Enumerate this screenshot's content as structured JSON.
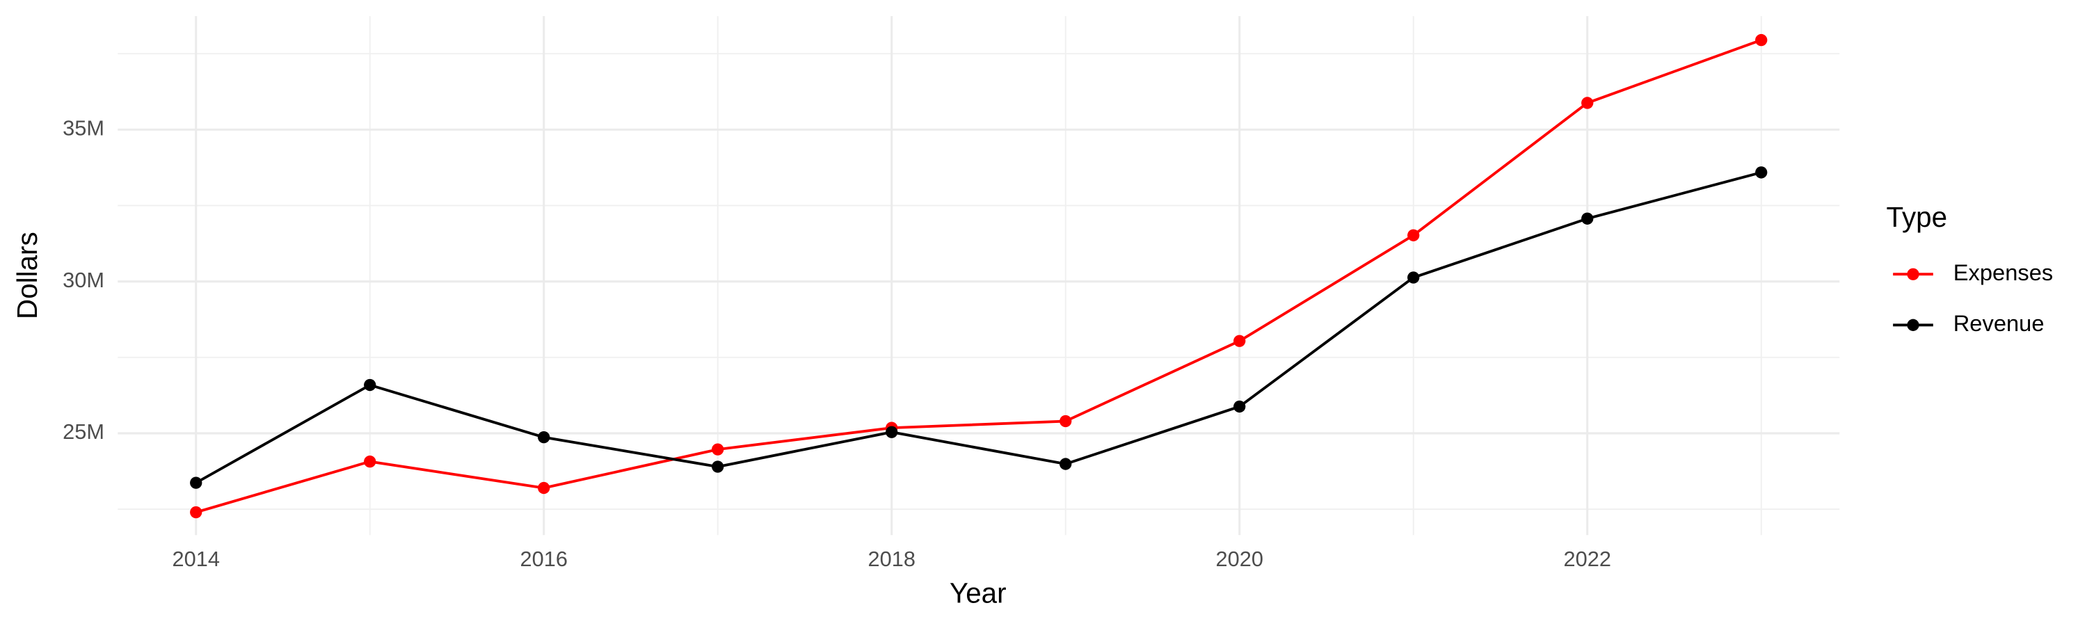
{
  "chart_data": {
    "type": "line",
    "x_label": "Year",
    "y_label": "Dollars",
    "legend_title": "Type",
    "legend_position": "right",
    "grid": true,
    "x": [
      2014,
      2015,
      2016,
      2017,
      2018,
      2019,
      2020,
      2021,
      2022,
      2023
    ],
    "series": [
      {
        "name": "Expenses",
        "color": "#ff0000",
        "values": [
          22400000,
          24070000,
          23200000,
          24470000,
          25180000,
          25400000,
          28040000,
          31520000,
          35880000,
          37950000
        ]
      },
      {
        "name": "Revenue",
        "color": "#000000",
        "values": [
          23370000,
          26590000,
          24870000,
          23900000,
          25040000,
          23990000,
          25880000,
          30130000,
          32070000,
          33590000
        ]
      }
    ],
    "xlim": [
      2013.55,
      2023.45
    ],
    "xticks": [
      2014,
      2016,
      2018,
      2020,
      2022
    ],
    "ylim": [
      21650000,
      38740000
    ],
    "yticks": [
      {
        "value": 25000000,
        "label": "25M"
      },
      {
        "value": 30000000,
        "label": "30M"
      },
      {
        "value": 35000000,
        "label": "35M"
      }
    ]
  }
}
